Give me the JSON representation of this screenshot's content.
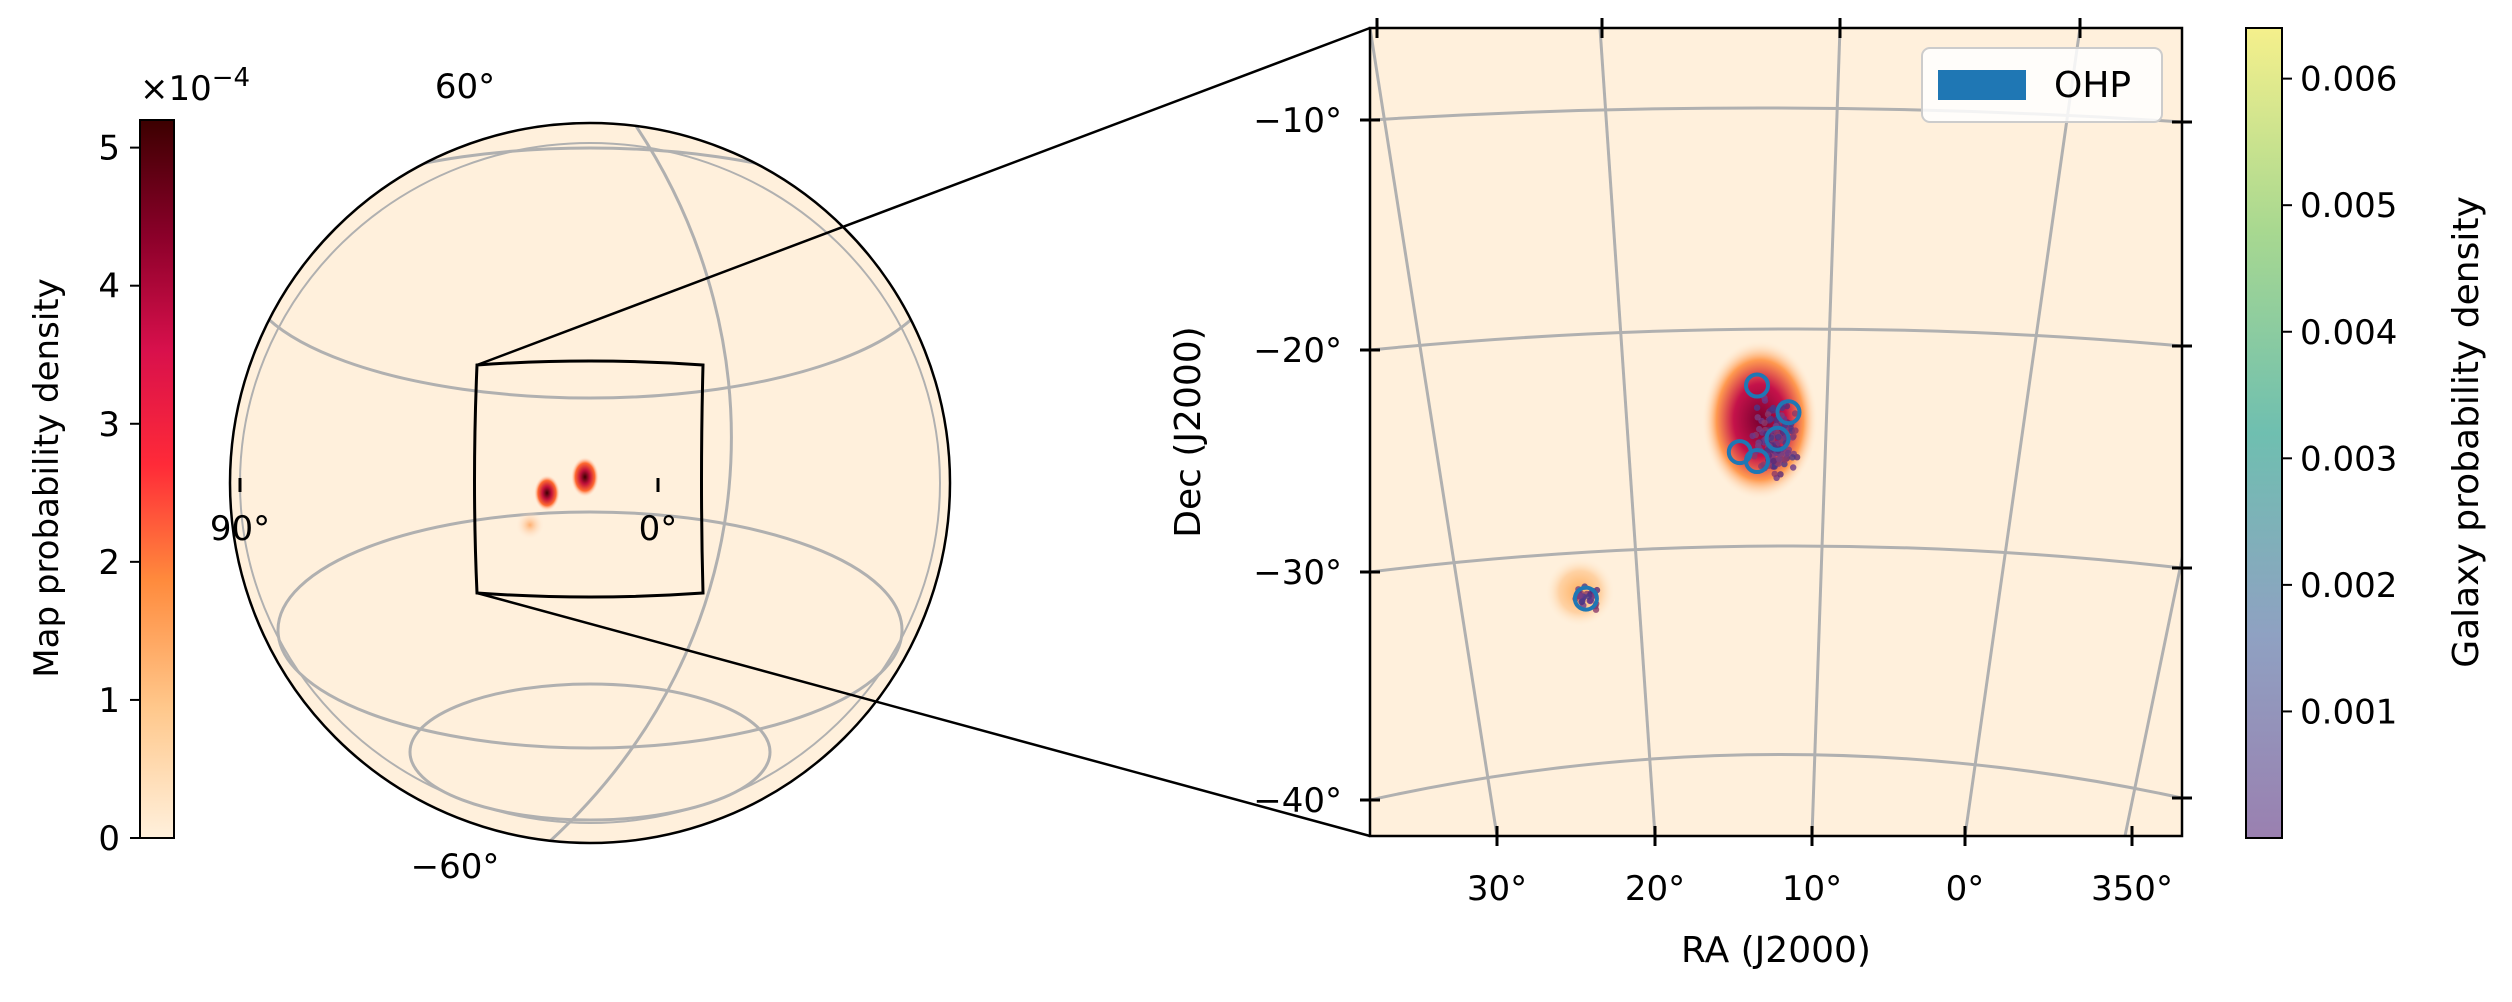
{
  "chart_data": [
    {
      "type": "heatmap",
      "panel": "globe",
      "projection": "orthographic",
      "colormap": "OrRd",
      "colorbar": {
        "label": "Map probability density",
        "multiplier": "×10",
        "exponent": "−4",
        "range": [
          0,
          5.2
        ],
        "ticks": [
          0,
          1,
          2,
          3,
          4,
          5
        ],
        "tick_labels": [
          "0",
          "1",
          "2",
          "3",
          "4",
          "5"
        ]
      },
      "lat_labels": [
        "60°",
        "−60°"
      ],
      "lon_labels": [
        "90°",
        "0°"
      ],
      "grid": true,
      "hotspots": [
        {
          "ra": 12,
          "dec": -24,
          "density": 5.0
        },
        {
          "ra": 24,
          "dec": -31,
          "density": 1.2
        }
      ]
    },
    {
      "type": "scatter",
      "panel": "zoom",
      "colormap": "viridis",
      "xlabel": "RA (J2000)",
      "ylabel": "Dec (J2000)",
      "x_ticks": [
        30,
        20,
        10,
        0,
        350
      ],
      "x_tick_labels": [
        "30°",
        "20°",
        "10°",
        "0°",
        "350°"
      ],
      "y_ticks": [
        -10,
        -20,
        -30,
        -40
      ],
      "y_tick_labels": [
        "−10°",
        "−20°",
        "−30°",
        "−40°"
      ],
      "grid": true,
      "legend": {
        "position": "top-right",
        "entries": [
          {
            "label": "OHP",
            "color": "#1f77b4"
          }
        ]
      },
      "colorbar": {
        "label": "Galaxy probability density",
        "range": [
          0,
          0.0064
        ],
        "ticks": [
          0.001,
          0.002,
          0.003,
          0.004,
          0.005,
          0.006
        ],
        "tick_labels": [
          "0.001",
          "0.002",
          "0.003",
          "0.004",
          "0.005",
          "0.006"
        ]
      },
      "galaxy_clusters": [
        {
          "ra": 12.5,
          "dec": -24.0,
          "spread_ra": 2.0,
          "spread_dec": 2.2,
          "count": 140
        },
        {
          "ra": 24.5,
          "dec": -31.2,
          "spread_ra": 1.0,
          "spread_dec": 0.8,
          "count": 30
        }
      ],
      "ohp_fields": [
        {
          "ra": 13.5,
          "dec": -21.6
        },
        {
          "ra": 11.5,
          "dec": -22.8
        },
        {
          "ra": 12.2,
          "dec": -24.0
        },
        {
          "ra": 14.6,
          "dec": -24.6
        },
        {
          "ra": 13.5,
          "dec": -25.0
        },
        {
          "ra": 24.4,
          "dec": -31.2
        }
      ]
    }
  ]
}
